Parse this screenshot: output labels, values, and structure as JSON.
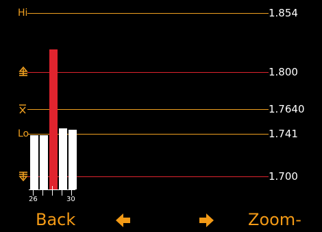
{
  "chart_data": {
    "type": "bar",
    "x": [
      26,
      27,
      28,
      29,
      30
    ],
    "x_tick_labels": [
      "26",
      "30"
    ],
    "values": [
      1.739,
      1.739,
      1.82,
      1.745,
      1.744
    ],
    "highlight_index": 2,
    "reference_lines": [
      {
        "id": "hi",
        "label": "Hi",
        "value": 1.854,
        "value_text": "1.854",
        "color": "#f0a020"
      },
      {
        "id": "ucl",
        "label": "",
        "icon": "upper-limit-icon",
        "value": 1.8,
        "value_text": "1.800",
        "color": "#e0242e"
      },
      {
        "id": "mean",
        "label": "",
        "icon": "mean-x-bar-icon",
        "value": 1.764,
        "value_text": "1.7640",
        "color": "#f0a020"
      },
      {
        "id": "lo",
        "label": "Lo",
        "value": 1.741,
        "value_text": "1.741",
        "color": "#f0a020"
      },
      {
        "id": "lcl",
        "label": "",
        "icon": "lower-limit-icon",
        "value": 1.7,
        "value_text": "1.700",
        "color": "#e0242e"
      }
    ],
    "colors": {
      "bar": "#ffffff",
      "highlight": "#e0242e",
      "accent": "#f0a020",
      "background": "#000000"
    }
  },
  "softkeys": {
    "back": "Back",
    "prev_icon": "left-arrow-icon",
    "next_icon": "right-arrow-icon",
    "zoom": "Zoom-"
  }
}
